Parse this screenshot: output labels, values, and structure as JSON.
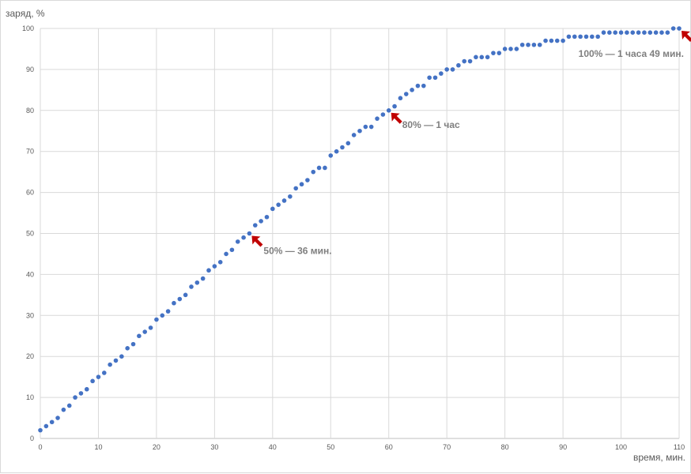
{
  "chart_data": {
    "type": "scatter",
    "title": "",
    "ylabel": "заряд, %",
    "xlabel": "время, мин.",
    "xlim": [
      0,
      110
    ],
    "ylim": [
      0,
      100
    ],
    "x_ticks": [
      0,
      10,
      20,
      30,
      40,
      50,
      60,
      70,
      80,
      90,
      100,
      110
    ],
    "y_ticks": [
      0,
      10,
      20,
      30,
      40,
      50,
      60,
      70,
      80,
      90,
      100
    ],
    "grid": true,
    "series_color": "#4472c4",
    "arrow_color": "#c00000",
    "x": [
      0,
      1,
      2,
      3,
      4,
      5,
      6,
      7,
      8,
      9,
      10,
      11,
      12,
      13,
      14,
      15,
      16,
      17,
      18,
      19,
      20,
      21,
      22,
      23,
      24,
      25,
      26,
      27,
      28,
      29,
      30,
      31,
      32,
      33,
      34,
      35,
      36,
      37,
      38,
      39,
      40,
      41,
      42,
      43,
      44,
      45,
      46,
      47,
      48,
      49,
      50,
      51,
      52,
      53,
      54,
      55,
      56,
      57,
      58,
      59,
      60,
      61,
      62,
      63,
      64,
      65,
      66,
      67,
      68,
      69,
      70,
      71,
      72,
      73,
      74,
      75,
      76,
      77,
      78,
      79,
      80,
      81,
      82,
      83,
      84,
      85,
      86,
      87,
      88,
      89,
      90,
      91,
      92,
      93,
      94,
      95,
      96,
      97,
      98,
      99,
      100,
      101,
      102,
      103,
      104,
      105,
      106,
      107,
      108,
      109,
      110
    ],
    "y": [
      2,
      3,
      4,
      5,
      7,
      8,
      10,
      11,
      12,
      14,
      15,
      16,
      18,
      19,
      20,
      22,
      23,
      25,
      26,
      27,
      29,
      30,
      31,
      33,
      34,
      35,
      37,
      38,
      39,
      41,
      42,
      43,
      45,
      46,
      48,
      49,
      50,
      52,
      53,
      54,
      56,
      57,
      58,
      59,
      61,
      62,
      63,
      65,
      66,
      66,
      69,
      70,
      71,
      72,
      74,
      75,
      76,
      76,
      78,
      79,
      80,
      81,
      83,
      84,
      85,
      86,
      86,
      88,
      88,
      89,
      90,
      90,
      91,
      92,
      92,
      93,
      93,
      93,
      94,
      94,
      95,
      95,
      95,
      96,
      96,
      96,
      96,
      97,
      97,
      97,
      97,
      98,
      98,
      98,
      98,
      98,
      98,
      99,
      99,
      99,
      99,
      99,
      99,
      99,
      99,
      99,
      99,
      99,
      99,
      100,
      100
    ],
    "annotations": [
      {
        "text": "50% — 36 мин.",
        "x": 36,
        "y": 50
      },
      {
        "text": "80% — 1 час",
        "x": 60,
        "y": 80
      },
      {
        "text": "100% — 1 часа 49 мин.",
        "x": 110,
        "y": 100
      }
    ]
  }
}
